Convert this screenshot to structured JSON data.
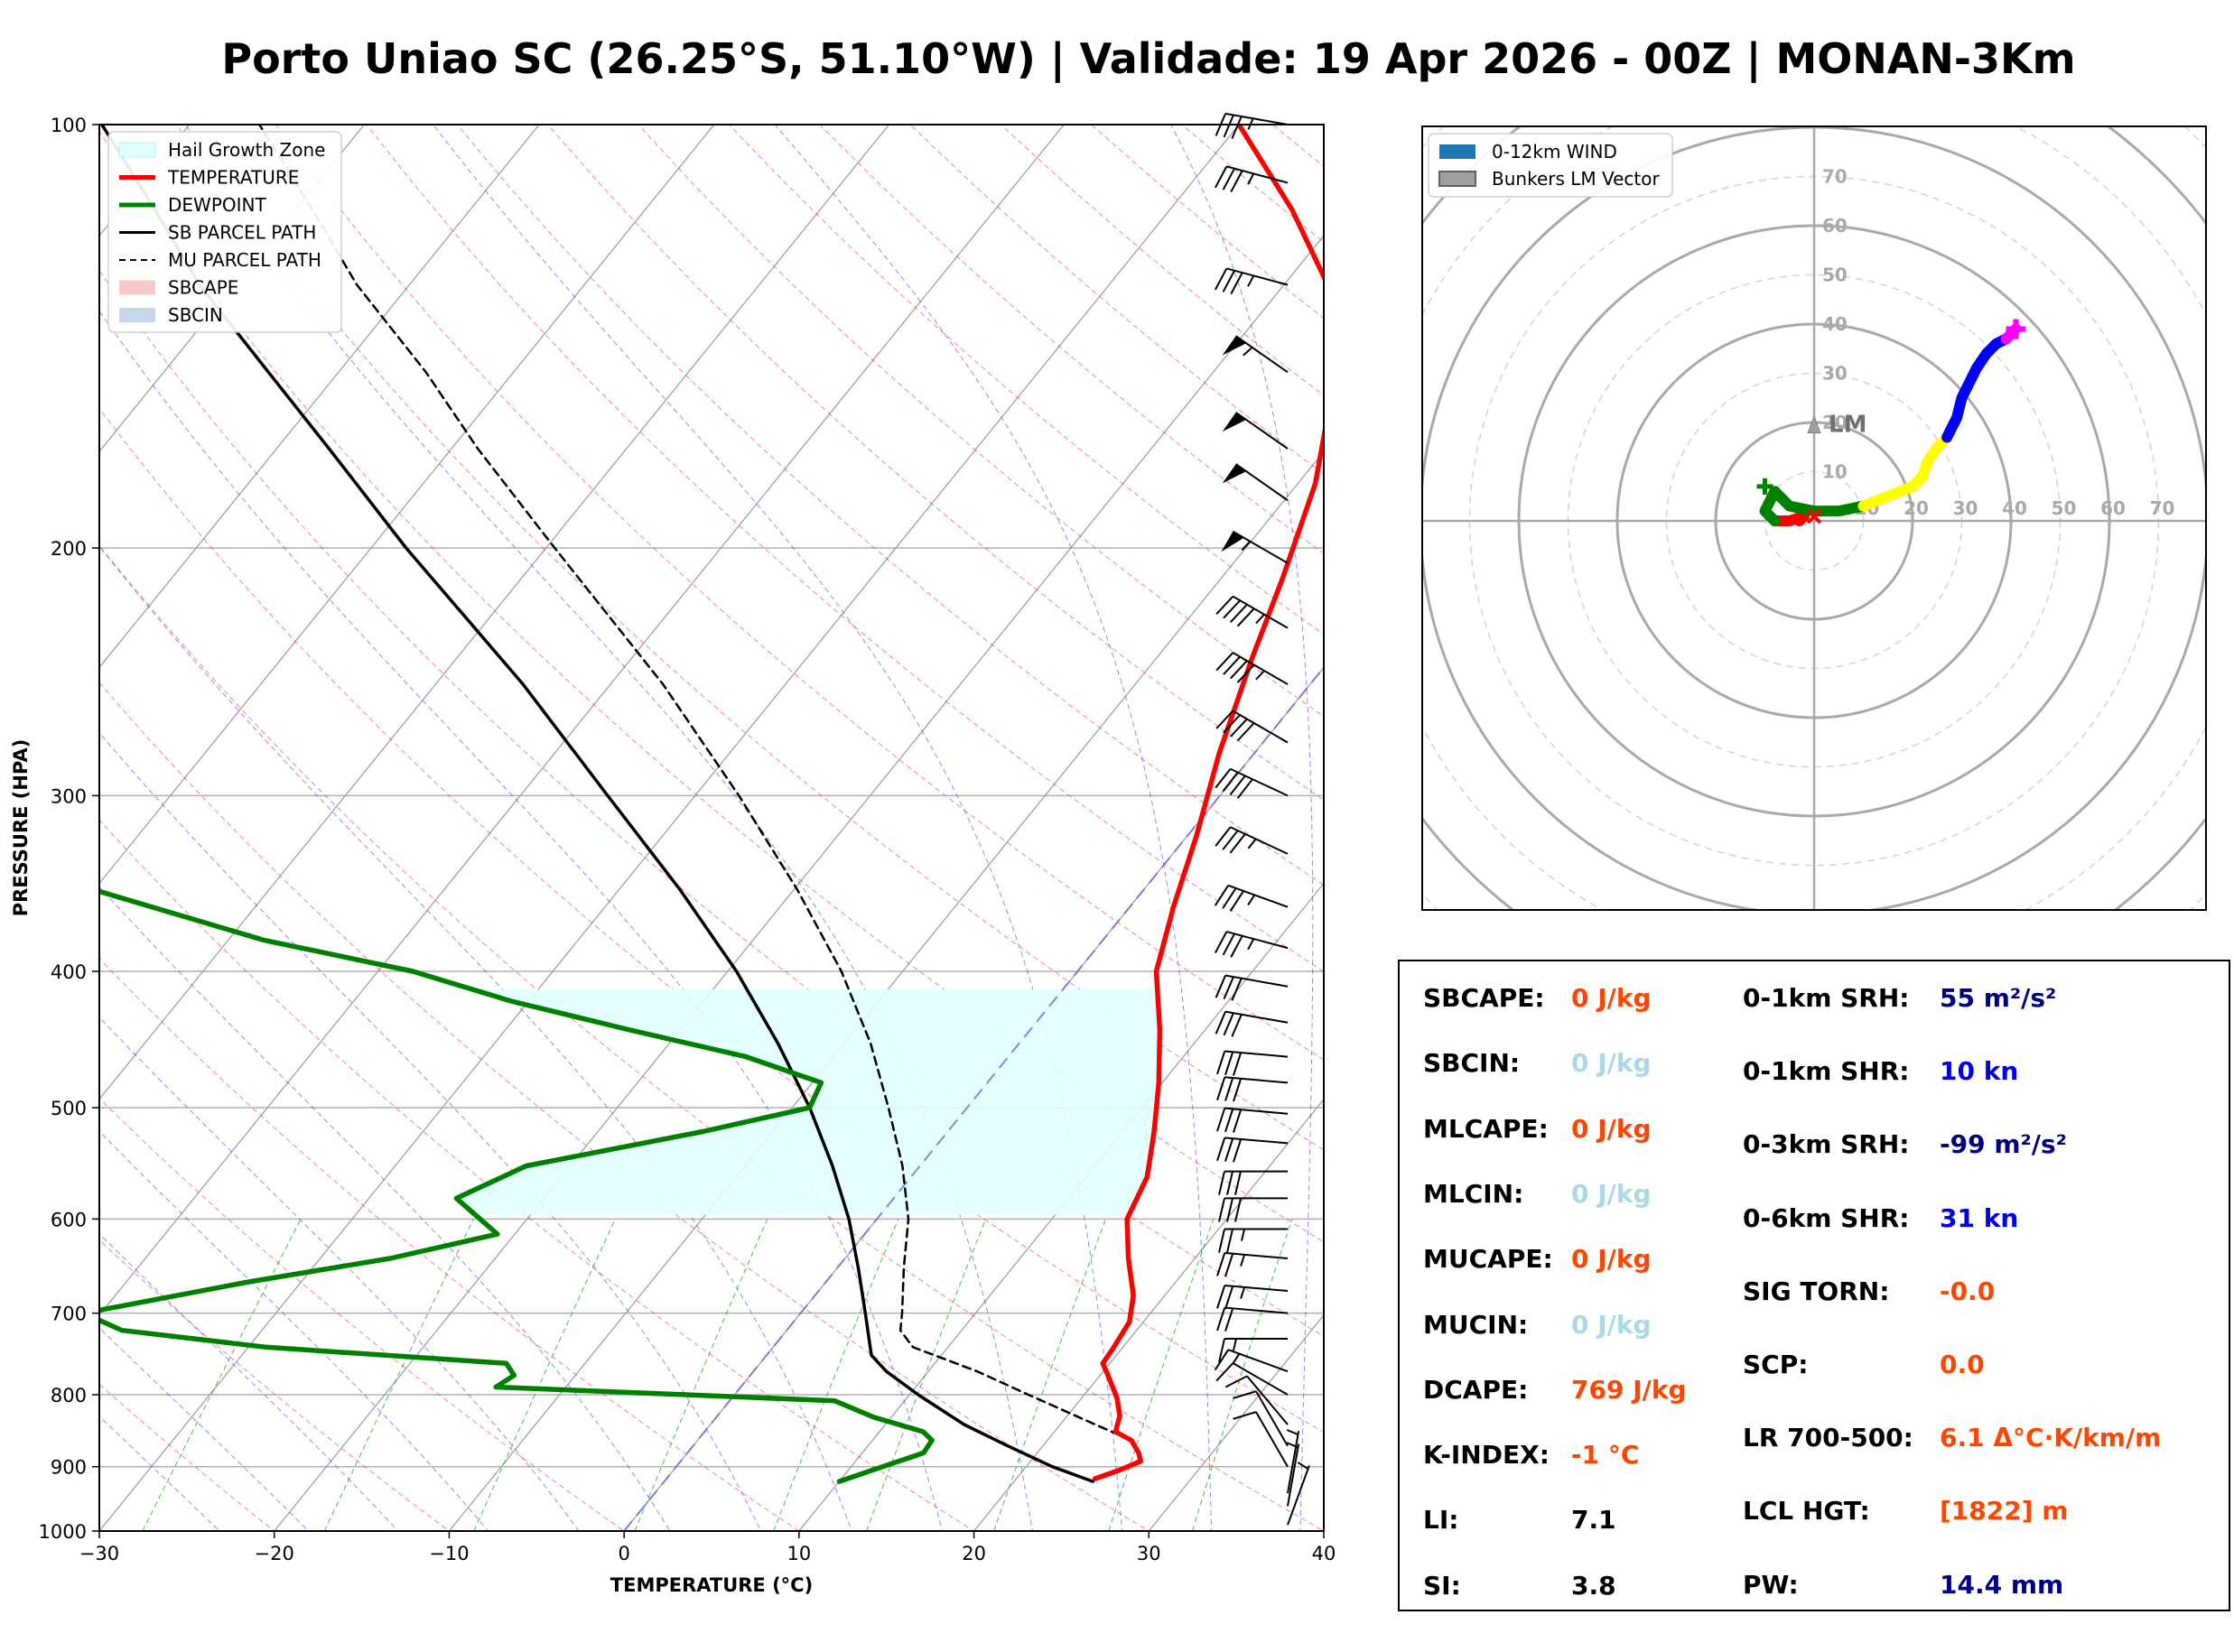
{
  "title": "Porto Uniao SC (26.25°S, 51.10°W) | Validade: 19 Apr 2026 - 00Z | MONAN-3Km",
  "colors": {
    "temperature": "#ff0000",
    "dewpoint": "#008000",
    "parcel": "#000000",
    "hail_zone": "#e0ffff",
    "isotherm": "#808080",
    "dry_adiabat": "#ff3030",
    "moist_adiabat": "#3030ff",
    "mixing_ratio": "#00a000",
    "value_orange": "#ff4500",
    "value_lightblue": "#add8e6",
    "value_navy": "#000080",
    "value_blue": "#0000ee",
    "hodo_seg1": "#ff0000",
    "hodo_seg2": "#008000",
    "hodo_seg3": "#ffff00",
    "hodo_seg4": "#0000ff",
    "hodo_seg5": "#ff00ff"
  },
  "chart_data": [
    {
      "type": "line",
      "name": "skew-t",
      "xlabel": "TEMPERATURE (°C)",
      "ylabel": "PRESSURE (HPA)",
      "xlim": [
        -30,
        40
      ],
      "ylim": [
        1000,
        100
      ],
      "xticks": [
        "−30",
        "−20",
        "−10",
        "0",
        "10",
        "20",
        "30",
        "40"
      ],
      "yticks": [
        "100",
        "200",
        "300",
        "400",
        "500",
        "600",
        "700",
        "800",
        "900",
        "1000"
      ],
      "legend": [
        {
          "label": "Hail Growth Zone",
          "style": "fill-cyan"
        },
        {
          "label": "TEMPERATURE",
          "style": "line-red"
        },
        {
          "label": "DEWPOINT",
          "style": "line-green"
        },
        {
          "label": "SB PARCEL PATH",
          "style": "line-black"
        },
        {
          "label": "MU PARCEL PATH",
          "style": "dash-black"
        },
        {
          "label": "SBCAPE",
          "style": "fill-pink"
        },
        {
          "label": "SBCIN",
          "style": "fill-blue"
        }
      ],
      "hail_growth_zone": {
        "p_bottom": 596,
        "p_top": 410
      },
      "temperature": {
        "p": [
          918,
          905,
          892,
          880,
          862,
          850,
          828,
          804,
          774,
          760,
          742,
          710,
          680,
          640,
          600,
          560,
          520,
          480,
          440,
          400,
          360,
          320,
          280,
          240,
          210,
          180,
          150,
          130,
          115,
          100
        ],
        "t": [
          24.5,
          25.5,
          26.3,
          25.8,
          24.8,
          23.5,
          23.0,
          22.0,
          20.4,
          19.6,
          19.5,
          19.2,
          18.2,
          16.2,
          14.3,
          13.5,
          11.8,
          9.8,
          7.4,
          4.5,
          2.5,
          0.5,
          -2.0,
          -4.5,
          -6.5,
          -9.0,
          -13.0,
          -17.5,
          -23.0,
          -30.0
        ]
      },
      "dewpoint": {
        "p": [
          922,
          900,
          880,
          862,
          850,
          830,
          808,
          790,
          775,
          760,
          740,
          720,
          700,
          665,
          640,
          615,
          580,
          550,
          520,
          500,
          480,
          460,
          440,
          420,
          400,
          380,
          350,
          320,
          300,
          280,
          260,
          240,
          200,
          180,
          160,
          150,
          140,
          130,
          120,
          115,
          100
        ],
        "td": [
          10.0,
          11.8,
          13.5,
          13.4,
          12.5,
          9.0,
          6.0,
          -14.0,
          -13.5,
          -14.5,
          -29.0,
          -38.0,
          -41.0,
          -33.0,
          -26.0,
          -21.0,
          -25.0,
          -22.5,
          -14.0,
          -9.0,
          -9.5,
          -15.0,
          -23.0,
          -31.0,
          -38.0,
          -48.0,
          -60.0,
          -66.0,
          -68.0,
          -73.0,
          -78.0,
          -83.0,
          -91.0,
          -98.0,
          -106.0,
          -110.0,
          -116.0,
          -122.0,
          -128.0,
          -128.0,
          -130.0
        ]
      },
      "sb_parcel": {
        "p": [
          922,
          900,
          870,
          840,
          800,
          770,
          750,
          700,
          650,
          600,
          550,
          500,
          450,
          400,
          350,
          300,
          250,
          200,
          170,
          150,
          130,
          115,
          100
        ],
        "t": [
          24.5,
          21.5,
          18.0,
          14.5,
          10.5,
          7.6,
          6.0,
          3.7,
          1.2,
          -1.6,
          -5.0,
          -9.0,
          -13.8,
          -19.5,
          -26.5,
          -35.0,
          -45.0,
          -58.0,
          -67.0,
          -74.0,
          -82.0,
          -88.0,
          -95.0
        ]
      },
      "mu_parcel": {
        "p": [
          862,
          840,
          800,
          770,
          740,
          720,
          700,
          650,
          600,
          550,
          500,
          450,
          400,
          350,
          300,
          250,
          200,
          170,
          150,
          130,
          115,
          100
        ],
        "t": [
          24.8,
          22.0,
          16.8,
          12.8,
          8.0,
          6.5,
          5.8,
          3.8,
          1.8,
          -1.0,
          -4.5,
          -8.5,
          -13.5,
          -19.8,
          -27.5,
          -37.0,
          -49.5,
          -58.5,
          -65.0,
          -73.0,
          -79.0,
          -86.0
        ]
      },
      "wind_barbs": {
        "p": [
          100,
          110,
          130,
          150,
          170,
          185,
          205,
          228,
          250,
          275,
          300,
          330,
          360,
          385,
          410,
          435,
          460,
          480,
          505,
          530,
          555,
          580,
          610,
          640,
          675,
          700,
          730,
          770,
          800,
          840,
          870,
          900,
          940,
          960,
          990
        ],
        "dir_deg": [
          280,
          285,
          285,
          305,
          305,
          305,
          300,
          300,
          300,
          300,
          295,
          295,
          290,
          285,
          280,
          280,
          275,
          275,
          275,
          275,
          270,
          270,
          270,
          275,
          275,
          275,
          270,
          290,
          300,
          320,
          330,
          330,
          10,
          10,
          20
        ],
        "speed_kt": [
          35,
          35,
          35,
          55,
          50,
          50,
          55,
          45,
          45,
          40,
          40,
          35,
          35,
          35,
          30,
          30,
          30,
          30,
          30,
          30,
          30,
          30,
          25,
          25,
          25,
          20,
          15,
          15,
          10,
          10,
          10,
          10,
          5,
          5,
          5
        ]
      }
    },
    {
      "type": "scatter",
      "name": "hodograph",
      "legend": [
        {
          "label": "0-12km WIND",
          "style": "patch-blue"
        },
        {
          "label": "Bunkers LM Vector",
          "style": "patch-gray"
        }
      ],
      "ring_labels": [
        "10",
        "20",
        "30",
        "40",
        "50",
        "60",
        "70"
      ],
      "annotation": "LM",
      "lm_vector": {
        "u": 0,
        "v": 19
      },
      "segments": [
        {
          "color": "hodo_seg1",
          "u": [
            -3,
            -2,
            -5,
            -8
          ],
          "v": [
            0,
            1,
            0,
            0
          ]
        },
        {
          "color": "hodo_seg2",
          "u": [
            -8,
            -10,
            -8,
            -5,
            0,
            5,
            10
          ],
          "v": [
            0,
            2,
            6,
            3,
            2,
            2,
            3
          ]
        },
        {
          "color": "hodo_seg3",
          "u": [
            10,
            15,
            20,
            22,
            23,
            25,
            27
          ],
          "v": [
            3,
            5,
            7,
            9,
            12,
            15,
            17
          ]
        },
        {
          "color": "hodo_seg4",
          "u": [
            27,
            28,
            29,
            30,
            32,
            33,
            35,
            37,
            39
          ],
          "v": [
            17,
            19,
            21,
            25,
            29,
            31,
            34,
            36,
            37
          ]
        },
        {
          "color": "hodo_seg5",
          "u": [
            39,
            40,
            40.5,
            41
          ],
          "v": [
            37,
            38,
            38.5,
            39
          ]
        }
      ],
      "extra_markers": [
        {
          "u": -10,
          "v": 7,
          "color": "hodo_seg2",
          "shape": "plus"
        }
      ]
    }
  ],
  "params": {
    "left": [
      {
        "label": "SBCAPE:",
        "value": "0 J/kg",
        "color": "value_orange"
      },
      {
        "label": "SBCIN:",
        "value": "0 J/kg",
        "color": "value_lightblue"
      },
      {
        "label": "MLCAPE:",
        "value": "0 J/kg",
        "color": "value_orange"
      },
      {
        "label": "MLCIN:",
        "value": "0 J/kg",
        "color": "value_lightblue"
      },
      {
        "label": "MUCAPE:",
        "value": "0 J/kg",
        "color": "value_orange"
      },
      {
        "label": "MUCIN:",
        "value": "0 J/kg",
        "color": "value_lightblue"
      },
      {
        "label": "DCAPE:",
        "value": "769 J/kg",
        "color": "value_orange"
      },
      {
        "label": "K-INDEX:",
        "value": "-1 °C",
        "color": "value_orange"
      },
      {
        "label": "LI:",
        "value": "7.1",
        "color": "#000000"
      },
      {
        "label": "SI:",
        "value": "3.8",
        "color": "#000000"
      }
    ],
    "right": [
      {
        "label": "0-1km SRH:",
        "value": "55 m²/s²",
        "color": "value_navy"
      },
      {
        "label": "0-1km SHR:",
        "value": "10 kn",
        "color": "value_blue"
      },
      {
        "label": "0-3km SRH:",
        "value": "-99 m²/s²",
        "color": "value_navy"
      },
      {
        "label": "0-6km SHR:",
        "value": "31 kn",
        "color": "value_blue"
      },
      {
        "label": "SIG TORN:",
        "value": "-0.0",
        "color": "value_orange"
      },
      {
        "label": "SCP:",
        "value": "0.0",
        "color": "value_orange"
      },
      {
        "label": "LR 700-500:",
        "value": "6.1 Δ°C·K/km/m",
        "color": "value_orange"
      },
      {
        "label": "LCL HGT:",
        "value": "[1822] m",
        "color": "value_orange"
      },
      {
        "label": "PW:",
        "value": "14.4 mm",
        "color": "value_navy"
      }
    ]
  }
}
